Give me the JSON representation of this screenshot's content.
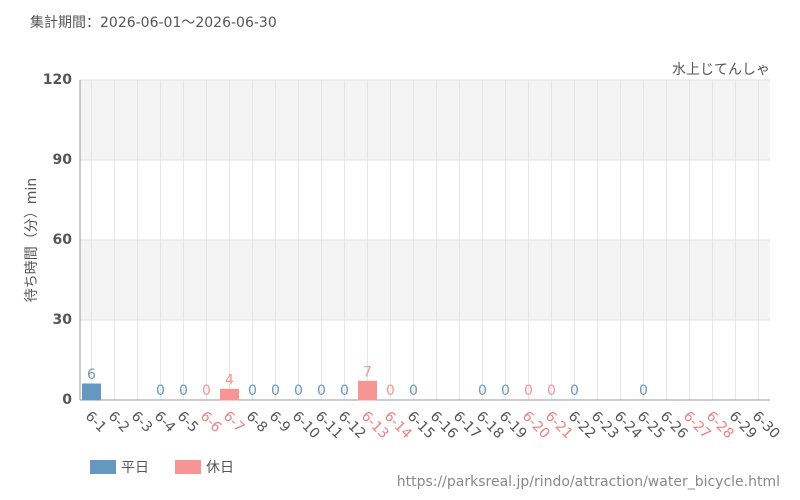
{
  "chart_data": {
    "type": "bar",
    "header": "集計期間：2026-06-01～2026-06-30",
    "subtitle": "水上じてんしゃ",
    "y_label": "待ち時間（分）min",
    "footer": "https://parksreal.jp/rindo/attraction/water_bicycle.html",
    "categories": [
      "6-1",
      "6-2",
      "6-3",
      "6-4",
      "6-5",
      "6-6",
      "6-7",
      "6-8",
      "6-9",
      "6-10",
      "6-11",
      "6-12",
      "6-13",
      "6-14",
      "6-15",
      "6-16",
      "6-17",
      "6-18",
      "6-19",
      "6-20",
      "6-21",
      "6-22",
      "6-23",
      "6-24",
      "6-25",
      "6-26",
      "6-27",
      "6-28",
      "6-29",
      "6-30"
    ],
    "tick_colors": [
      "#555",
      "#555",
      "#555",
      "#555",
      "#555",
      "#f08080",
      "#f08080",
      "#555",
      "#555",
      "#555",
      "#555",
      "#555",
      "#f08080",
      "#f08080",
      "#555",
      "#555",
      "#555",
      "#555",
      "#555",
      "#f08080",
      "#f08080",
      "#555",
      "#555",
      "#555",
      "#555",
      "#555",
      "#f08080",
      "#f08080",
      "#555",
      "#555"
    ],
    "series": [
      {
        "name": "平日",
        "color": "#6699c2",
        "values": [
          6,
          null,
          null,
          0,
          0,
          null,
          null,
          0,
          0,
          0,
          0,
          0,
          null,
          null,
          0,
          null,
          null,
          0,
          0,
          null,
          null,
          0,
          null,
          null,
          0,
          null,
          null,
          null,
          null,
          null
        ]
      },
      {
        "name": "休日",
        "color": "#f79595",
        "values": [
          null,
          null,
          null,
          null,
          null,
          0,
          4,
          null,
          null,
          null,
          null,
          null,
          7,
          0,
          null,
          null,
          null,
          null,
          null,
          0,
          0,
          null,
          null,
          null,
          null,
          null,
          null,
          null,
          null,
          null
        ]
      }
    ],
    "ylim": [
      0,
      120
    ],
    "yticks": [
      0,
      30,
      60,
      90,
      120
    ],
    "grid": true
  }
}
